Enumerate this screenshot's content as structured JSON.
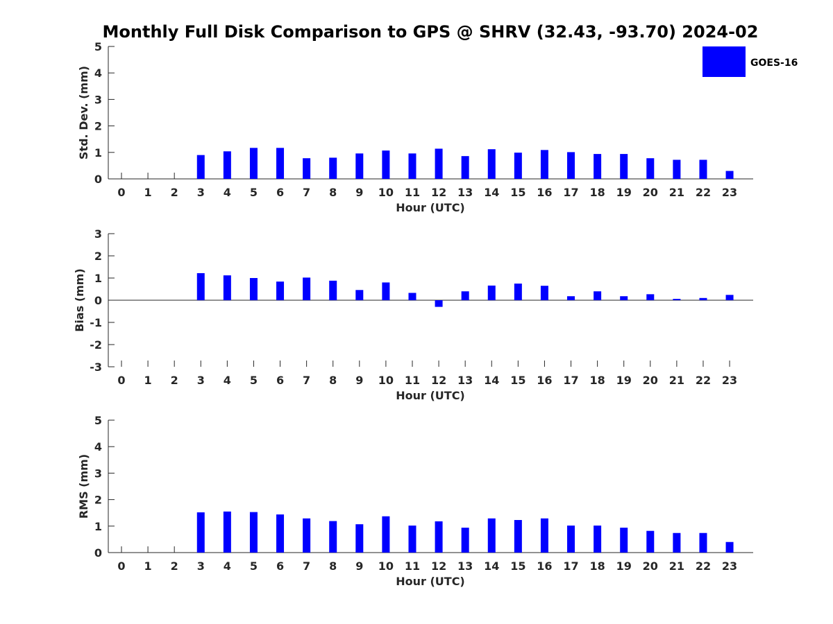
{
  "figure": {
    "title": "Monthly Full Disk Comparison to GPS @ SHRV (32.43, -93.70) 2024-02"
  },
  "legend": {
    "label": "GOES-16",
    "placement": "top-right"
  },
  "colors": {
    "bar": "#0000ff",
    "axis": "#262626",
    "title": "#000000"
  },
  "chart_data": [
    {
      "type": "bar",
      "ylabel": "Std. Dev. (mm)",
      "xlabel": "Hour (UTC)",
      "ylim": [
        0,
        5
      ],
      "yticks": [
        "0",
        "1",
        "2",
        "3",
        "4",
        "5"
      ],
      "categories": [
        "0",
        "1",
        "2",
        "3",
        "4",
        "5",
        "6",
        "7",
        "8",
        "9",
        "10",
        "11",
        "12",
        "13",
        "14",
        "15",
        "16",
        "17",
        "18",
        "19",
        "20",
        "21",
        "22",
        "23"
      ],
      "series": [
        {
          "name": "GOES-16",
          "values": [
            null,
            null,
            null,
            0.9,
            1.04,
            1.17,
            1.17,
            0.78,
            0.8,
            0.96,
            1.07,
            0.96,
            1.14,
            0.86,
            1.12,
            0.99,
            1.09,
            1.01,
            0.94,
            0.94,
            0.78,
            0.72,
            0.72,
            0.3
          ]
        }
      ]
    },
    {
      "type": "bar",
      "ylabel": "Bias (mm)",
      "xlabel": "Hour (UTC)",
      "ylim": [
        -3,
        3
      ],
      "yticks": [
        "-3",
        "-2",
        "-1",
        "0",
        "1",
        "2",
        "3"
      ],
      "categories": [
        "0",
        "1",
        "2",
        "3",
        "4",
        "5",
        "6",
        "7",
        "8",
        "9",
        "10",
        "11",
        "12",
        "13",
        "14",
        "15",
        "16",
        "17",
        "18",
        "19",
        "20",
        "21",
        "22",
        "23"
      ],
      "series": [
        {
          "name": "GOES-16",
          "values": [
            null,
            null,
            null,
            1.22,
            1.12,
            1.0,
            0.84,
            1.02,
            0.88,
            0.46,
            0.8,
            0.33,
            -0.3,
            0.4,
            0.66,
            0.75,
            0.65,
            0.18,
            0.4,
            0.18,
            0.27,
            0.06,
            0.1,
            0.24
          ]
        }
      ]
    },
    {
      "type": "bar",
      "ylabel": "RMS (mm)",
      "xlabel": "Hour (UTC)",
      "ylim": [
        0,
        5
      ],
      "yticks": [
        "0",
        "1",
        "2",
        "3",
        "4",
        "5"
      ],
      "categories": [
        "0",
        "1",
        "2",
        "3",
        "4",
        "5",
        "6",
        "7",
        "8",
        "9",
        "10",
        "11",
        "12",
        "13",
        "14",
        "15",
        "16",
        "17",
        "18",
        "19",
        "20",
        "21",
        "22",
        "23"
      ],
      "series": [
        {
          "name": "GOES-16",
          "values": [
            null,
            null,
            null,
            1.52,
            1.55,
            1.53,
            1.44,
            1.29,
            1.19,
            1.07,
            1.37,
            1.02,
            1.18,
            0.94,
            1.29,
            1.23,
            1.29,
            1.02,
            1.02,
            0.94,
            0.82,
            0.74,
            0.74,
            0.4
          ]
        }
      ]
    }
  ]
}
